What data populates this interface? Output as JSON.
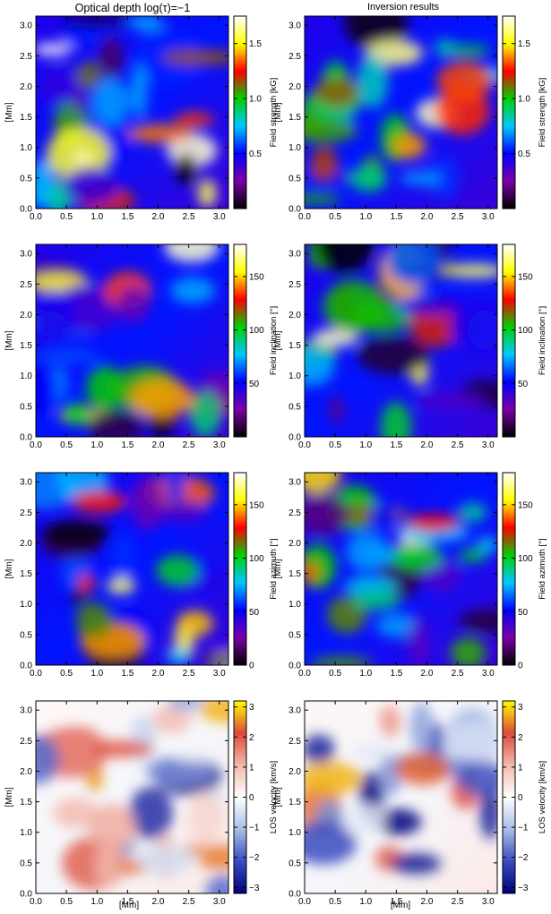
{
  "column_titles": [
    "Optical depth log(τ)=−1",
    "Inversion results"
  ],
  "x_axis_label": "[Mm]",
  "y_axis_label": "[Mm]",
  "chart_data": [
    {
      "type": "heatmap",
      "panel": "field-strength-simulation",
      "row": 0,
      "column": 0,
      "colorbar_label": "Field strength [kG]",
      "colorbar_ticks": [
        {
          "v": 0.5,
          "label": "0.5"
        },
        {
          "v": 1.0,
          "label": "1.0"
        },
        {
          "v": 1.5,
          "label": "1.5"
        }
      ],
      "clim": [
        0,
        1.75
      ],
      "xlim": [
        0,
        3.15
      ],
      "ylim": [
        0,
        3.15
      ],
      "x_ticks": [
        "0.0",
        "0.5",
        "1.0",
        "1.5",
        "2.0",
        "2.5",
        "3.0"
      ],
      "y_ticks": [
        "0.0",
        "0.5",
        "1.0",
        "1.5",
        "2.0",
        "2.5",
        "3.0"
      ],
      "colormap": [
        "#000000",
        "#7b00a8",
        "#0000ff",
        "#00c8ff",
        "#00d000",
        "#ff0000",
        "#ffff00",
        "#ffffff"
      ]
    },
    {
      "type": "heatmap",
      "panel": "field-strength-inversion",
      "row": 0,
      "column": 1,
      "colorbar_label": "Field strength [kG]",
      "colorbar_ticks": [
        {
          "v": 0.5,
          "label": "0.5"
        },
        {
          "v": 1.0,
          "label": "1.0"
        },
        {
          "v": 1.5,
          "label": "1.5"
        }
      ],
      "clim": [
        0,
        1.75
      ],
      "xlim": [
        0,
        3.15
      ],
      "ylim": [
        0,
        3.15
      ],
      "x_ticks": [
        "0.0",
        "0.5",
        "1.0",
        "1.5",
        "2.0",
        "2.5",
        "3.0"
      ],
      "y_ticks": [
        "0.0",
        "0.5",
        "1.0",
        "1.5",
        "2.0",
        "2.5",
        "3.0"
      ],
      "colormap": [
        "#000000",
        "#7b00a8",
        "#0000ff",
        "#00c8ff",
        "#00d000",
        "#ff0000",
        "#ffff00",
        "#ffffff"
      ]
    },
    {
      "type": "heatmap",
      "panel": "field-inclination-simulation",
      "row": 1,
      "column": 0,
      "colorbar_label": "Field inclination [°]",
      "colorbar_ticks": [
        {
          "v": 50,
          "label": "50"
        },
        {
          "v": 100,
          "label": "100"
        },
        {
          "v": 150,
          "label": "150"
        }
      ],
      "clim": [
        0,
        180
      ],
      "xlim": [
        0,
        3.15
      ],
      "ylim": [
        0,
        3.15
      ],
      "x_ticks": [
        "0.0",
        "0.5",
        "1.0",
        "1.5",
        "2.0",
        "2.5",
        "3.0"
      ],
      "y_ticks": [
        "0.0",
        "0.5",
        "1.0",
        "1.5",
        "2.0",
        "2.5",
        "3.0"
      ],
      "colormap": [
        "#000000",
        "#7b00a8",
        "#0000ff",
        "#00c8ff",
        "#00d000",
        "#ff0000",
        "#ffff00",
        "#ffffff"
      ]
    },
    {
      "type": "heatmap",
      "panel": "field-inclination-inversion",
      "row": 1,
      "column": 1,
      "colorbar_label": "Field inclination [°]",
      "colorbar_ticks": [
        {
          "v": 50,
          "label": "50"
        },
        {
          "v": 100,
          "label": "100"
        },
        {
          "v": 150,
          "label": "150"
        }
      ],
      "clim": [
        0,
        180
      ],
      "xlim": [
        0,
        3.15
      ],
      "ylim": [
        0,
        3.15
      ],
      "x_ticks": [
        "0.0",
        "0.5",
        "1.0",
        "1.5",
        "2.0",
        "2.5",
        "3.0"
      ],
      "y_ticks": [
        "0.0",
        "0.5",
        "1.0",
        "1.5",
        "2.0",
        "2.5",
        "3.0"
      ],
      "colormap": [
        "#000000",
        "#7b00a8",
        "#0000ff",
        "#00c8ff",
        "#00d000",
        "#ff0000",
        "#ffff00",
        "#ffffff"
      ]
    },
    {
      "type": "heatmap",
      "panel": "field-azimuth-simulation",
      "row": 2,
      "column": 0,
      "colorbar_label": "Field azimuth [°]",
      "colorbar_ticks": [
        {
          "v": 0,
          "label": "0"
        },
        {
          "v": 50,
          "label": "50"
        },
        {
          "v": 100,
          "label": "100"
        },
        {
          "v": 150,
          "label": "150"
        }
      ],
      "clim": [
        0,
        180
      ],
      "xlim": [
        0,
        3.15
      ],
      "ylim": [
        0,
        3.15
      ],
      "x_ticks": [
        "0.0",
        "0.5",
        "1.0",
        "1.5",
        "2.0",
        "2.5",
        "3.0"
      ],
      "y_ticks": [
        "0.0",
        "0.5",
        "1.0",
        "1.5",
        "2.0",
        "2.5",
        "3.0"
      ],
      "colormap": [
        "#000000",
        "#7b00a8",
        "#0000ff",
        "#00c8ff",
        "#00d000",
        "#ff0000",
        "#ffff00",
        "#ffffff"
      ]
    },
    {
      "type": "heatmap",
      "panel": "field-azimuth-inversion",
      "row": 2,
      "column": 1,
      "colorbar_label": "Field azimuth [°]",
      "colorbar_ticks": [
        {
          "v": 0,
          "label": "0"
        },
        {
          "v": 50,
          "label": "50"
        },
        {
          "v": 100,
          "label": "100"
        },
        {
          "v": 150,
          "label": "150"
        }
      ],
      "clim": [
        0,
        180
      ],
      "xlim": [
        0,
        3.15
      ],
      "ylim": [
        0,
        3.15
      ],
      "x_ticks": [
        "0.0",
        "0.5",
        "1.0",
        "1.5",
        "2.0",
        "2.5",
        "3.0"
      ],
      "y_ticks": [
        "0.0",
        "0.5",
        "1.0",
        "1.5",
        "2.0",
        "2.5",
        "3.0"
      ],
      "colormap": [
        "#000000",
        "#7b00a8",
        "#0000ff",
        "#00c8ff",
        "#00d000",
        "#ff0000",
        "#ffff00",
        "#ffffff"
      ]
    },
    {
      "type": "heatmap",
      "panel": "los-velocity-simulation",
      "row": 3,
      "column": 0,
      "colorbar_label": "LOS velocity [km/s]",
      "colorbar_ticks": [
        {
          "v": -3,
          "label": "−3"
        },
        {
          "v": -2,
          "label": "−2"
        },
        {
          "v": -1,
          "label": "−1"
        },
        {
          "v": 0,
          "label": "0"
        },
        {
          "v": 1,
          "label": "1"
        },
        {
          "v": 2,
          "label": "2"
        },
        {
          "v": 3,
          "label": "3"
        }
      ],
      "clim": [
        -3.2,
        3.2
      ],
      "xlim": [
        0,
        3.15
      ],
      "ylim": [
        0,
        3.15
      ],
      "x_ticks": [
        "0.0",
        "0.5",
        "1.0",
        "1.5",
        "2.0",
        "2.5",
        "3.0"
      ],
      "y_ticks": [
        "0.0",
        "0.5",
        "1.0",
        "1.5",
        "2.0",
        "2.5",
        "3.0"
      ],
      "colormap": [
        "#00007a",
        "#3a4cc0",
        "#a9bde6",
        "#ffffff",
        "#f3b8ad",
        "#dd4a3a",
        "#ffff00"
      ]
    },
    {
      "type": "heatmap",
      "panel": "los-velocity-inversion",
      "row": 3,
      "column": 1,
      "colorbar_label": "LOS velocity [km/s]",
      "colorbar_ticks": [
        {
          "v": -3,
          "label": "−3"
        },
        {
          "v": -2,
          "label": "−2"
        },
        {
          "v": -1,
          "label": "−1"
        },
        {
          "v": 0,
          "label": "0"
        },
        {
          "v": 1,
          "label": "1"
        },
        {
          "v": 2,
          "label": "2"
        },
        {
          "v": 3,
          "label": "3"
        }
      ],
      "clim": [
        -3.2,
        3.2
      ],
      "xlim": [
        0,
        3.15
      ],
      "ylim": [
        0,
        3.15
      ],
      "x_ticks": [
        "0.0",
        "0.5",
        "1.0",
        "1.5",
        "2.0",
        "2.5",
        "3.0"
      ],
      "y_ticks": [
        "0.0",
        "0.5",
        "1.0",
        "1.5",
        "2.0",
        "2.5",
        "3.0"
      ],
      "colormap": [
        "#00007a",
        "#3a4cc0",
        "#a9bde6",
        "#ffffff",
        "#f3b8ad",
        "#dd4a3a",
        "#ffff00"
      ]
    }
  ]
}
